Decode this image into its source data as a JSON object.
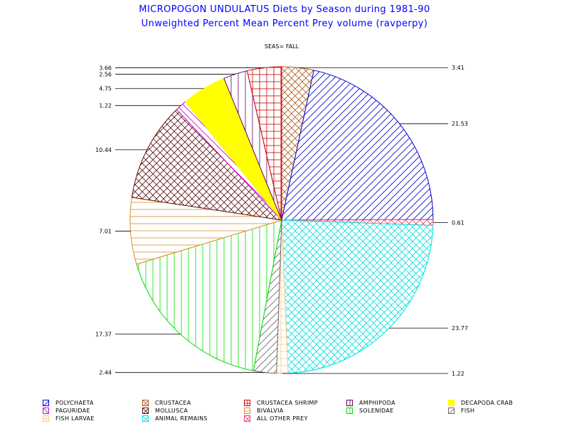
{
  "title_line1": "MICROPOGON UNDULATUS Diets by Season during 1981-90",
  "title_line2": "Unweighted Percent Mean Percent Prey  volume (ravperpy)",
  "chart_data": {
    "type": "pie",
    "title": "SEAS= FALL",
    "start_angle_deg": 90,
    "direction": "clockwise",
    "slices": [
      {
        "name": "CRUSTACEA",
        "value": 3.41,
        "color": "#b05a1e",
        "pattern": "crosshatch-diag",
        "label": "3.41"
      },
      {
        "name": "POLYCHAETA",
        "value": 21.53,
        "color": "#0000cc",
        "pattern": "diag-up",
        "label": "21.53"
      },
      {
        "name": "ALL OTHER PREY",
        "value": 0.61,
        "color": "#ff3366",
        "pattern": "crosshatch-diag",
        "label": "0.61"
      },
      {
        "name": "ANIMAL REMAINS",
        "value": 23.77,
        "color": "#00e0e0",
        "pattern": "crosshatch-diag",
        "label": "23.77"
      },
      {
        "name": "FISH LARVAE",
        "value": 1.22,
        "color": "#f5c98a",
        "pattern": "grid",
        "label": "1.22"
      },
      {
        "name": "FISH",
        "value": 2.44,
        "color": "#666666",
        "pattern": "diag-up",
        "label": "2.44"
      },
      {
        "name": "SOLENIDAE",
        "value": 17.37,
        "color": "#00dd00",
        "pattern": "vertical",
        "label": "17.37"
      },
      {
        "name": "BIVALVIA",
        "value": 7.01,
        "color": "#e08a2a",
        "pattern": "horizontal",
        "label": "7.01"
      },
      {
        "name": "MOLLUSCA",
        "value": 10.44,
        "color": "#5a1010",
        "pattern": "crosshatch-diag",
        "label": "10.44"
      },
      {
        "name": "PAGURIDAE",
        "value": 1.22,
        "color": "#cc00cc",
        "pattern": "diag-down",
        "label": "1.22"
      },
      {
        "name": "DECAPODA CRAB",
        "value": 4.75,
        "color": "#ffff00",
        "pattern": "solid",
        "label": "4.75"
      },
      {
        "name": "AMPHIPODA",
        "value": 2.56,
        "color": "#660066",
        "pattern": "vertical",
        "label": "2.56"
      },
      {
        "name": "CRUSTACEA SHRIMP",
        "value": 3.66,
        "color": "#cc0000",
        "pattern": "grid",
        "label": "3.66"
      }
    ]
  },
  "legend": {
    "items": [
      {
        "label": "POLYCHAETA",
        "color": "#0000cc",
        "pattern": "diag-up"
      },
      {
        "label": "CRUSTACEA",
        "color": "#b05a1e",
        "pattern": "crosshatch-diag"
      },
      {
        "label": "CRUSTACEA SHRIMP",
        "color": "#cc0000",
        "pattern": "grid"
      },
      {
        "label": "AMPHIPODA",
        "color": "#660066",
        "pattern": "vertical"
      },
      {
        "label": "DECAPODA CRAB",
        "color": "#ffff00",
        "pattern": "solid"
      },
      {
        "label": "PAGURIDAE",
        "color": "#cc00cc",
        "pattern": "diag-down"
      },
      {
        "label": "MOLLUSCA",
        "color": "#5a1010",
        "pattern": "crosshatch-diag"
      },
      {
        "label": "BIVALVIA",
        "color": "#e08a2a",
        "pattern": "horizontal"
      },
      {
        "label": "SOLENIDAE",
        "color": "#00dd00",
        "pattern": "vertical"
      },
      {
        "label": "FISH",
        "color": "#666666",
        "pattern": "diag-up"
      },
      {
        "label": "FISH LARVAE",
        "color": "#f5c98a",
        "pattern": "grid"
      },
      {
        "label": "ANIMAL REMAINS",
        "color": "#00e0e0",
        "pattern": "crosshatch-diag"
      },
      {
        "label": "ALL OTHER PREY",
        "color": "#ff3366",
        "pattern": "crosshatch-diag"
      }
    ]
  }
}
